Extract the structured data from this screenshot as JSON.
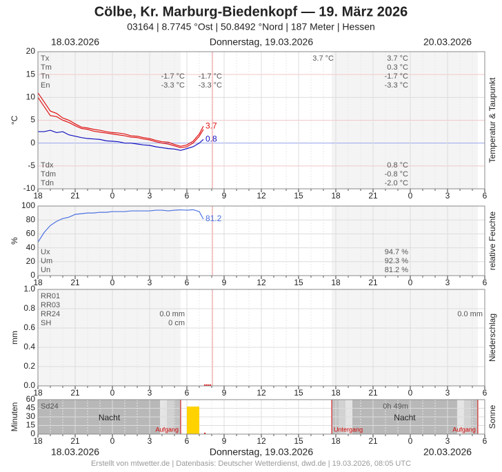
{
  "header": {
    "title": "Cölbe, Kr. Marburg-Biedenkopf  —  19. März 2026",
    "subtitle": "03164  |  8.7745 °Ost  |  50.8492 °Nord  |  187 Meter  |  Hessen",
    "dates": [
      "18.03.2026",
      "Donnerstag, 19.03.2026",
      "20.03.2026"
    ]
  },
  "footer": {
    "dates": [
      "18.03.2026",
      "Donnerstag, 19.03.2026",
      "20.03.2026"
    ],
    "credit": "Erstellt von mtwetter.de | Datenbasis: Deutscher Wetterdienst, dwd.de | 19.03.2026, 08:05 UTC"
  },
  "now": 14.06,
  "sun_events": [
    {
      "x": 11.5,
      "label": "Aufgang"
    },
    {
      "x": 23.67,
      "label": "Untergang"
    },
    {
      "x": 35.44,
      "label": "Aufgang"
    }
  ],
  "chart_data": [
    {
      "type": "line",
      "ylabel": "°C",
      "right_label": "Temperatur & Taupunkt",
      "xlim": [
        0,
        36
      ],
      "xticks": [
        {
          "value": 0,
          "label": "18"
        },
        {
          "value": 3,
          "label": "21"
        },
        {
          "value": 6,
          "label": "0"
        },
        {
          "value": 9,
          "label": "3"
        },
        {
          "value": 12,
          "label": "6"
        },
        {
          "value": 15,
          "label": "9"
        },
        {
          "value": 18,
          "label": "12"
        },
        {
          "value": 21,
          "label": "15"
        },
        {
          "value": 24,
          "label": "18"
        },
        {
          "value": 27,
          "label": "21"
        },
        {
          "value": 30,
          "label": "0"
        },
        {
          "value": 33,
          "label": "3"
        },
        {
          "value": 36,
          "label": "6"
        }
      ],
      "ylim": [
        -10,
        20
      ],
      "yticks": [
        -10,
        -5,
        0,
        5,
        10,
        15,
        20
      ],
      "zero_line": true,
      "x": [
        0,
        0.5,
        1,
        1.5,
        2,
        2.5,
        3,
        3.5,
        4,
        4.5,
        5,
        5.5,
        6,
        6.5,
        7,
        7.5,
        8,
        8.5,
        9,
        9.5,
        10,
        10.5,
        11,
        11.5,
        12,
        12.5,
        13,
        13.33
      ],
      "series": [
        {
          "color": "#e01010",
          "end_label": true,
          "values": [
            11,
            9,
            7,
            6.5,
            5.5,
            5,
            4.2,
            3.5,
            3.3,
            3,
            2.8,
            2.5,
            2.3,
            2.2,
            2,
            1.6,
            1.5,
            1.2,
            1,
            0.6,
            0.3,
            0.2,
            -0.3,
            -0.7,
            -0.4,
            0.4,
            2,
            3.7
          ]
        },
        {
          "color": "#e01010",
          "values": [
            10,
            8,
            6,
            5.8,
            5,
            4.5,
            3.8,
            3.2,
            3,
            2.6,
            2.4,
            2.2,
            2,
            1.8,
            1.6,
            1.3,
            1.2,
            0.9,
            0.7,
            0.3,
            0,
            -0.2,
            -0.6,
            -1,
            -0.8,
            0,
            1.5,
            3
          ]
        },
        {
          "color": "#1010c0",
          "end_label": true,
          "values": [
            2.5,
            2.5,
            2.8,
            2.3,
            2.5,
            1.8,
            1.5,
            1.2,
            1,
            0.9,
            0.8,
            0.5,
            0.4,
            0.3,
            0,
            0,
            -0.2,
            -0.4,
            -0.5,
            -0.8,
            -1,
            -1.2,
            -1.3,
            -1.6,
            -1.2,
            -0.8,
            0,
            0.8
          ]
        }
      ],
      "stats": [
        {
          "position": "top",
          "labels": [
            "Tx",
            "Tm",
            "Tn",
            "En"
          ],
          "columns": [
            [
              null,
              null,
              "-1.7 °C",
              "-3.3 °C"
            ],
            [
              null,
              null,
              "-1.7 °C",
              "-3.3 °C"
            ],
            [
              "3.7 °C",
              null,
              null,
              null
            ],
            [
              "3.7 °C",
              "0.3 °C",
              "-1.7 °C",
              "-3.3 °C"
            ]
          ]
        },
        {
          "position": "bottom",
          "labels": [
            "Tdx",
            "Tdm",
            "Tdn"
          ],
          "columns": [
            [
              "0.8 °C",
              "-0.8 °C",
              "-2.0 °C"
            ]
          ]
        }
      ]
    },
    {
      "type": "line",
      "ylabel": "%",
      "right_label": "relative Feuchte",
      "xlim": [
        0,
        36
      ],
      "xticks": [
        {
          "value": 0,
          "label": "18"
        },
        {
          "value": 3,
          "label": "21"
        },
        {
          "value": 6,
          "label": "0"
        },
        {
          "value": 9,
          "label": "3"
        },
        {
          "value": 12,
          "label": "6"
        },
        {
          "value": 15,
          "label": "9"
        },
        {
          "value": 18,
          "label": "12"
        },
        {
          "value": 21,
          "label": "15"
        },
        {
          "value": 24,
          "label": "18"
        },
        {
          "value": 27,
          "label": "21"
        },
        {
          "value": 30,
          "label": "0"
        },
        {
          "value": 33,
          "label": "3"
        },
        {
          "value": 36,
          "label": "6"
        }
      ],
      "ylim": [
        0,
        100
      ],
      "yticks": [
        0,
        20,
        40,
        60,
        80,
        100
      ],
      "x": [
        0,
        0.5,
        1,
        1.5,
        2,
        2.5,
        3,
        3.5,
        4,
        4.5,
        5,
        5.5,
        6,
        6.5,
        7,
        7.5,
        8,
        8.5,
        9,
        9.5,
        10,
        10.5,
        11,
        11.5,
        12,
        12.5,
        13,
        13.33
      ],
      "series": [
        {
          "color": "#4a70e0",
          "end_label": true,
          "values": [
            48,
            62,
            72,
            78,
            82,
            84,
            88,
            89,
            90,
            90,
            91,
            91,
            92,
            92,
            92,
            93,
            93,
            93,
            93,
            94,
            94,
            93,
            94,
            94.5,
            94,
            94.7,
            92,
            81.2
          ]
        }
      ],
      "stats": [
        {
          "position": "bottom",
          "labels": [
            "Ux",
            "Um",
            "Un"
          ],
          "columns": [
            [
              "94.7 %",
              "92.3 %",
              "81.2 %"
            ]
          ]
        }
      ]
    },
    {
      "type": "bar",
      "ylabel": "mm",
      "right_label": "Niederschlag",
      "xlim": [
        0,
        36
      ],
      "xticks": [
        {
          "value": 0,
          "label": "18"
        },
        {
          "value": 3,
          "label": "21"
        },
        {
          "value": 6,
          "label": "0"
        },
        {
          "value": 9,
          "label": "3"
        },
        {
          "value": 12,
          "label": "6"
        },
        {
          "value": 15,
          "label": "9"
        },
        {
          "value": 18,
          "label": "12"
        },
        {
          "value": 21,
          "label": "15"
        },
        {
          "value": 24,
          "label": "18"
        },
        {
          "value": 27,
          "label": "21"
        },
        {
          "value": 30,
          "label": "0"
        },
        {
          "value": 33,
          "label": "3"
        },
        {
          "value": 36,
          "label": "6"
        }
      ],
      "ylim": [
        0,
        1
      ],
      "yticks": [
        {
          "value": 0,
          "label": "0.0"
        },
        0.2,
        0.4,
        0.6,
        0.8,
        {
          "value": 1,
          "label": "1.0"
        }
      ],
      "x": [
        13.45,
        13.6,
        13.75,
        13.9
      ],
      "series": [
        {
          "color": "#e00000",
          "values": [
            0,
            0,
            0,
            0
          ]
        }
      ],
      "stats": [
        {
          "position": "top",
          "labels": [
            "RR01",
            "RR03",
            "RR24",
            "SH"
          ],
          "columns": [
            [
              null,
              null,
              "0.0 mm",
              "0 cm"
            ],
            [
              null,
              null,
              "0.0 mm",
              null
            ]
          ]
        }
      ]
    },
    {
      "type": "bar",
      "ylabel": "Minuten",
      "right_label": "Sonne",
      "sun": true,
      "xlim": [
        0,
        36
      ],
      "xticks": [
        {
          "value": 0,
          "label": "18"
        },
        {
          "value": 3,
          "label": "21"
        },
        {
          "value": 6,
          "label": "0"
        },
        {
          "value": 9,
          "label": "3"
        },
        {
          "value": 12,
          "label": "6"
        },
        {
          "value": 15,
          "label": "9"
        },
        {
          "value": 18,
          "label": "12"
        },
        {
          "value": 21,
          "label": "15"
        },
        {
          "value": 24,
          "label": "18"
        },
        {
          "value": 27,
          "label": "21"
        },
        {
          "value": 30,
          "label": "0"
        },
        {
          "value": 33,
          "label": "3"
        },
        {
          "value": 36,
          "label": "6"
        }
      ],
      "ylim": [
        0,
        60
      ],
      "yticks": [
        0,
        15,
        30,
        45,
        60
      ],
      "x": [
        12.5,
        13.45
      ],
      "series": [
        {
          "colors": [
            "#ffd200",
            "#e00000"
          ],
          "values": [
            48,
            1
          ]
        }
      ],
      "night_labels": [
        "Nacht",
        "Nacht"
      ],
      "stats": [
        {
          "position": "top",
          "labels": [
            "Sd24"
          ],
          "columns": [
            [
              "0h 49m"
            ]
          ]
        }
      ]
    }
  ]
}
